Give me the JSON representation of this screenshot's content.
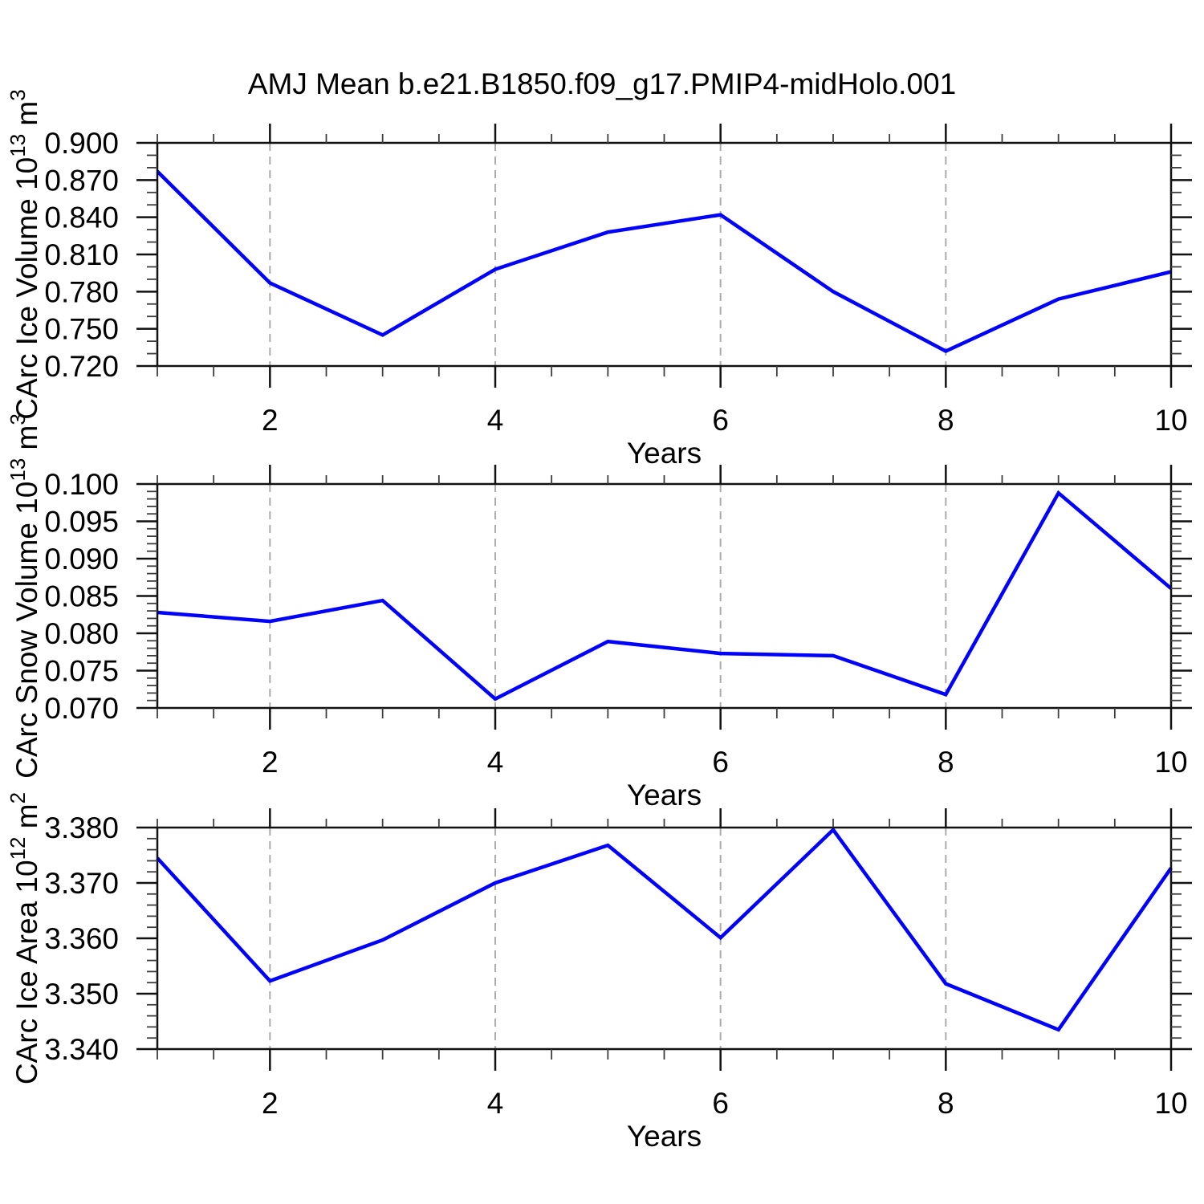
{
  "title": "AMJ Mean b.e21.B1850.f09_g17.PMIP4-midHolo.001",
  "colors": {
    "line": "#0000ff",
    "grid": "#ababab",
    "frame": "#111111",
    "major_tick": "#111111",
    "minor_tick": "#3d3d3d",
    "text": "#000000",
    "background": "#ffffff"
  },
  "x_axis": {
    "label": "Years",
    "min": 1,
    "max": 10,
    "major_ticks": [
      2,
      4,
      6,
      8,
      10
    ],
    "major_tick_labels": [
      "2",
      "4",
      "6",
      "8",
      "10"
    ],
    "minor_step": 0.5,
    "gridlines": [
      2,
      4,
      6,
      8
    ]
  },
  "chart_data": [
    {
      "type": "line",
      "id": "ice-volume",
      "ylabel_text": "CArc Ice Volume 10^13 m^3",
      "ylabel_parts": [
        {
          "t": "CArc Ice Volume 10"
        },
        {
          "t": "13",
          "sup": true
        },
        {
          "t": " m"
        },
        {
          "t": "3",
          "sup": true
        }
      ],
      "x": [
        1,
        2,
        3,
        4,
        5,
        6,
        7,
        8,
        9,
        10
      ],
      "values": [
        0.877,
        0.787,
        0.745,
        0.798,
        0.828,
        0.842,
        0.78,
        0.732,
        0.774,
        0.796
      ],
      "ylim": [
        0.72,
        0.9
      ],
      "ytick_values": [
        0.72,
        0.75,
        0.78,
        0.81,
        0.84,
        0.87,
        0.9
      ],
      "ytick_labels": [
        "0.720",
        "0.750",
        "0.780",
        "0.810",
        "0.840",
        "0.870",
        "0.900"
      ],
      "yminor_step": 0.01,
      "xlabel": "Years",
      "grid": true,
      "legend": "none"
    },
    {
      "type": "line",
      "id": "snow-volume",
      "ylabel_text": "CArc Snow Volume 10^13 m^3",
      "ylabel_parts": [
        {
          "t": "CArc Snow Volume 10"
        },
        {
          "t": "13",
          "sup": true
        },
        {
          "t": " m"
        },
        {
          "t": "3",
          "sup": true
        }
      ],
      "x": [
        1,
        2,
        3,
        4,
        5,
        6,
        7,
        8,
        9,
        10
      ],
      "values": [
        0.0828,
        0.0816,
        0.0844,
        0.0712,
        0.0789,
        0.0773,
        0.077,
        0.0718,
        0.0988,
        0.086
      ],
      "ylim": [
        0.07,
        0.1
      ],
      "ytick_values": [
        0.07,
        0.075,
        0.08,
        0.085,
        0.09,
        0.095,
        0.1
      ],
      "ytick_labels": [
        "0.070",
        "0.075",
        "0.080",
        "0.085",
        "0.090",
        "0.095",
        "0.100"
      ],
      "yminor_step": 0.001,
      "xlabel": "Years",
      "grid": true,
      "legend": "none"
    },
    {
      "type": "line",
      "id": "ice-area",
      "ylabel_text": "CArc Ice Area 10^12 m^2",
      "ylabel_parts": [
        {
          "t": "CArc Ice Area 10"
        },
        {
          "t": "12",
          "sup": true
        },
        {
          "t": " m"
        },
        {
          "t": "2",
          "sup": true
        }
      ],
      "x": [
        1,
        2,
        3,
        4,
        5,
        6,
        7,
        8,
        9,
        10
      ],
      "values": [
        3.3745,
        3.3523,
        3.3597,
        3.37,
        3.3768,
        3.3601,
        3.3796,
        3.3518,
        3.3435,
        3.3727
      ],
      "ylim": [
        3.34,
        3.38
      ],
      "ytick_values": [
        3.34,
        3.35,
        3.36,
        3.37,
        3.38
      ],
      "ytick_labels": [
        "3.340",
        "3.350",
        "3.360",
        "3.370",
        "3.380"
      ],
      "yminor_step": 0.002,
      "xlabel": "Years",
      "grid": true,
      "legend": "none"
    }
  ]
}
